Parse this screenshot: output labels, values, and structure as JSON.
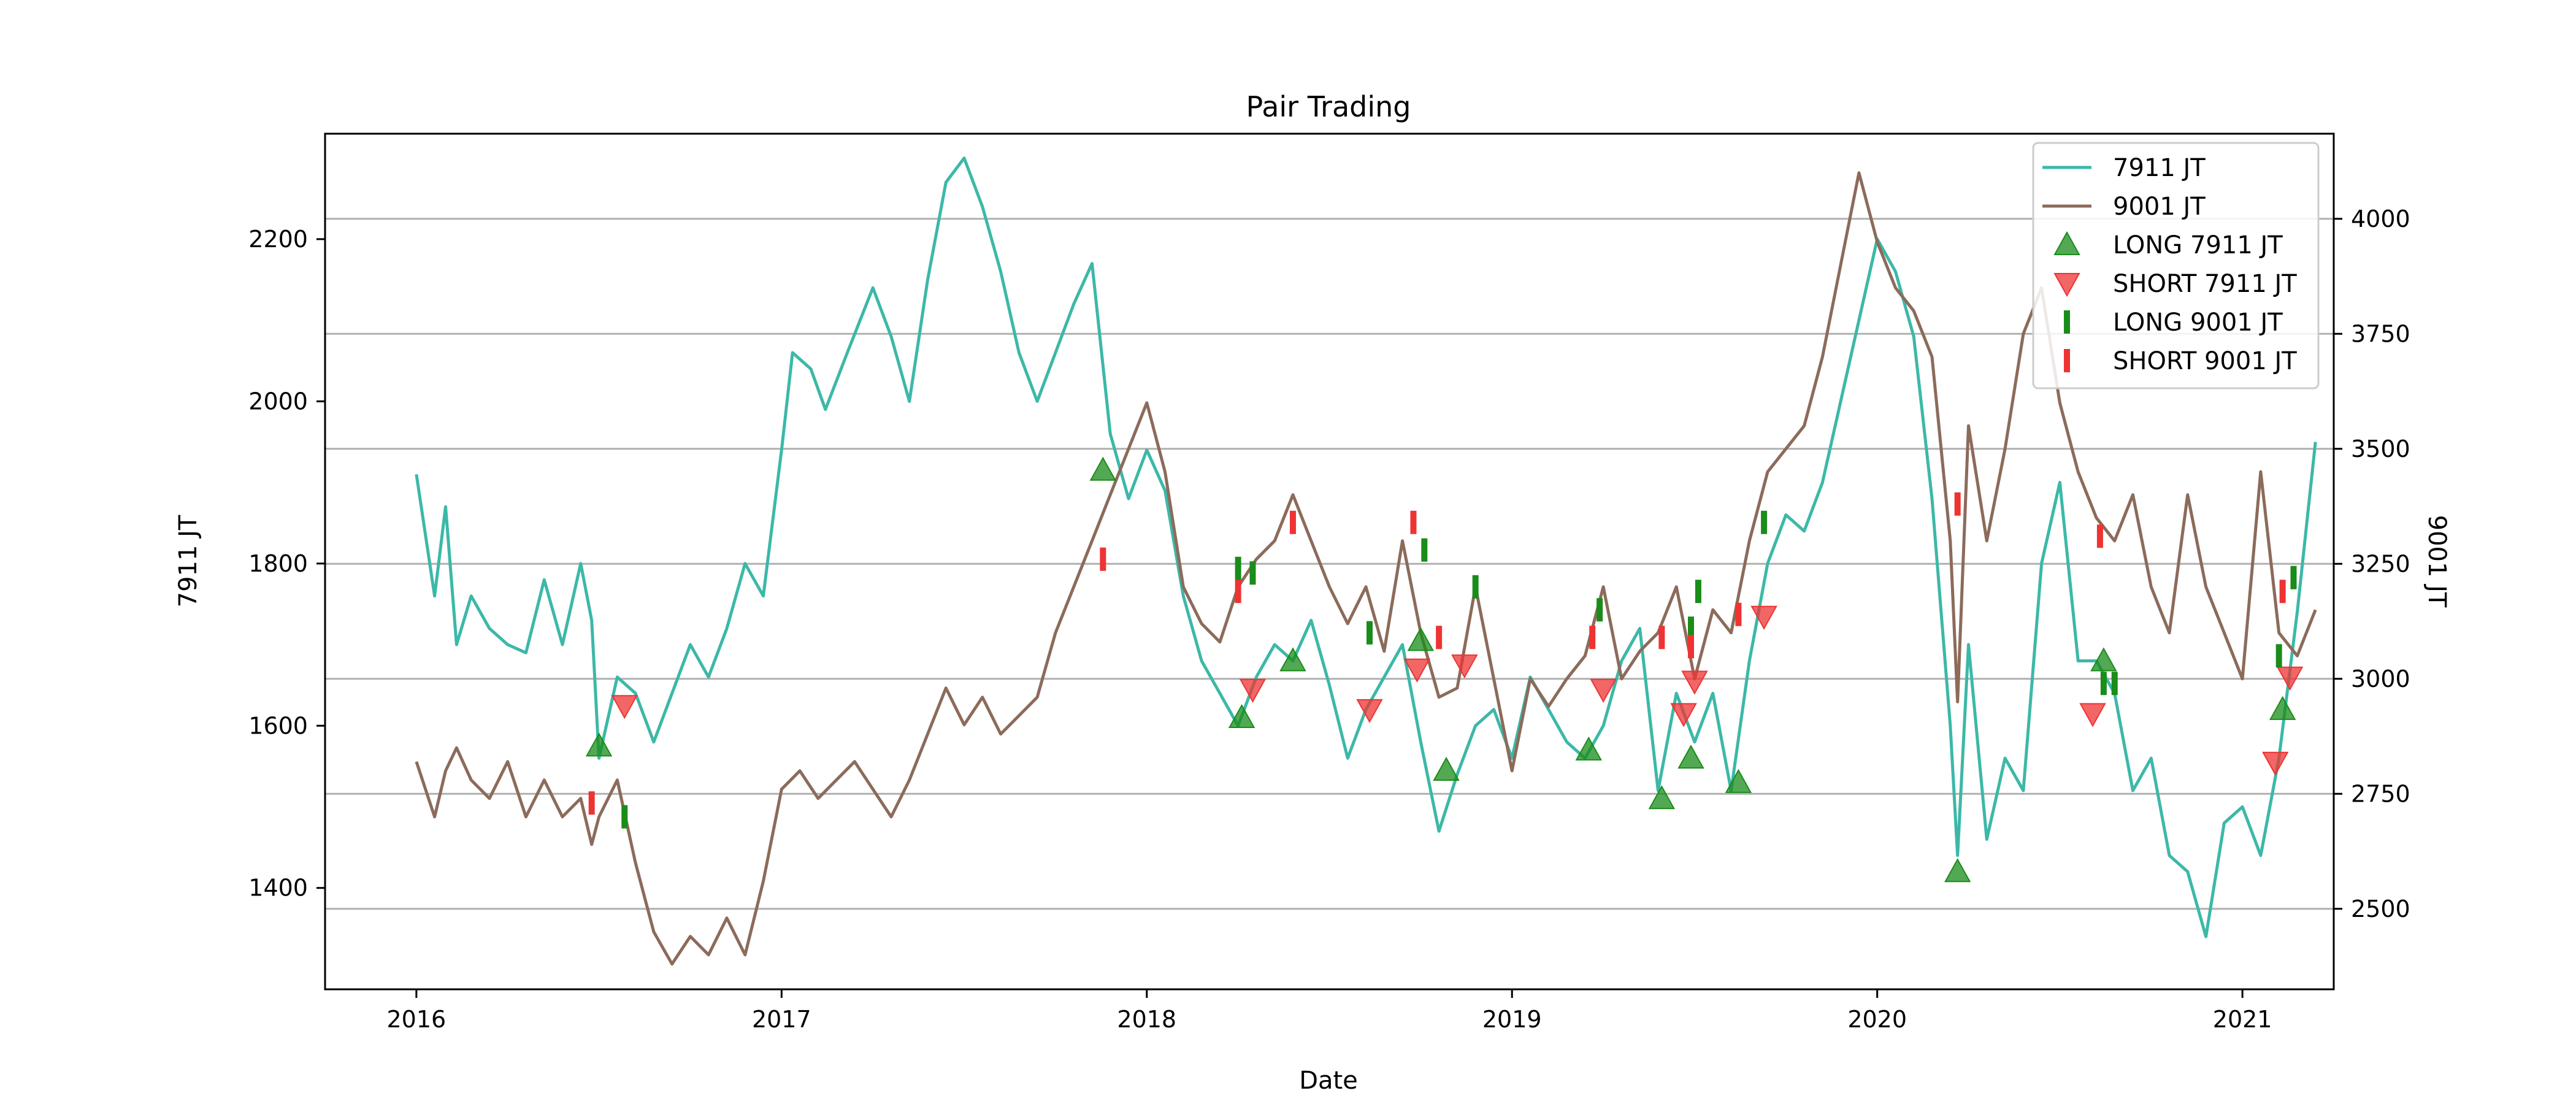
{
  "chart_data": {
    "type": "line",
    "title": "Pair Trading",
    "xlabel": "Date",
    "ylabel_left": "7911 JT",
    "ylabel_right": "9001 JT",
    "x_ticks": [
      "2016",
      "2017",
      "2018",
      "2019",
      "2020",
      "2021"
    ],
    "y_left_ticks": [
      1400,
      1600,
      1800,
      2000,
      2200
    ],
    "y_right_ticks": [
      2500,
      2750,
      3000,
      3250,
      3500,
      3750,
      4000
    ],
    "xlim": [
      2015.75,
      2021.25
    ],
    "ylim_left": [
      1275,
      2330
    ],
    "ylim_right": [
      2325,
      4185
    ],
    "grid": "horizontal lines at right-axis ticks",
    "legend_position": "upper right",
    "colors": {
      "series_7911": "#3cb8a8",
      "series_9001": "#8c6b5b",
      "long": "#1a8c1a",
      "short": "#ee3333"
    },
    "series": [
      {
        "name": "7911 JT",
        "axis": "left",
        "x": [
          2016.0,
          2016.05,
          2016.08,
          2016.11,
          2016.15,
          2016.2,
          2016.25,
          2016.3,
          2016.35,
          2016.4,
          2016.45,
          2016.48,
          2016.5,
          2016.55,
          2016.6,
          2016.65,
          2016.7,
          2016.75,
          2016.8,
          2016.85,
          2016.9,
          2016.95,
          2017.0,
          2017.03,
          2017.08,
          2017.12,
          2017.18,
          2017.25,
          2017.3,
          2017.35,
          2017.4,
          2017.45,
          2017.5,
          2017.55,
          2017.6,
          2017.65,
          2017.7,
          2017.75,
          2017.8,
          2017.85,
          2017.9,
          2017.95,
          2018.0,
          2018.05,
          2018.1,
          2018.15,
          2018.2,
          2018.25,
          2018.3,
          2018.35,
          2018.4,
          2018.45,
          2018.5,
          2018.55,
          2018.6,
          2018.65,
          2018.7,
          2018.75,
          2018.8,
          2018.85,
          2018.9,
          2018.95,
          2019.0,
          2019.05,
          2019.1,
          2019.15,
          2019.2,
          2019.25,
          2019.3,
          2019.35,
          2019.4,
          2019.45,
          2019.5,
          2019.55,
          2019.6,
          2019.65,
          2019.7,
          2019.75,
          2019.8,
          2019.85,
          2019.9,
          2019.95,
          2020.0,
          2020.05,
          2020.1,
          2020.15,
          2020.2,
          2020.22,
          2020.25,
          2020.3,
          2020.35,
          2020.4,
          2020.45,
          2020.5,
          2020.55,
          2020.6,
          2020.65,
          2020.7,
          2020.75,
          2020.8,
          2020.85,
          2020.9,
          2020.95,
          2021.0,
          2021.05,
          2021.1,
          2021.15,
          2021.2
        ],
        "y": [
          1910,
          1760,
          1870,
          1700,
          1760,
          1720,
          1700,
          1690,
          1780,
          1700,
          1800,
          1730,
          1560,
          1660,
          1640,
          1580,
          1640,
          1700,
          1660,
          1720,
          1800,
          1760,
          1940,
          2060,
          2040,
          1990,
          2060,
          2140,
          2080,
          2000,
          2150,
          2270,
          2300,
          2240,
          2160,
          2060,
          2000,
          2060,
          2120,
          2170,
          1960,
          1880,
          1940,
          1890,
          1760,
          1680,
          1640,
          1600,
          1660,
          1700,
          1680,
          1730,
          1650,
          1560,
          1620,
          1660,
          1700,
          1580,
          1470,
          1540,
          1600,
          1620,
          1560,
          1660,
          1620,
          1580,
          1560,
          1600,
          1680,
          1720,
          1520,
          1640,
          1580,
          1640,
          1520,
          1680,
          1800,
          1860,
          1840,
          1900,
          2000,
          2100,
          2200,
          2160,
          2080,
          1880,
          1600,
          1440,
          1700,
          1460,
          1560,
          1520,
          1800,
          1900,
          1680,
          1680,
          1640,
          1520,
          1560,
          1440,
          1420,
          1340,
          1480,
          1500,
          1440,
          1560,
          1740,
          1950
        ]
      },
      {
        "name": "9001 JT",
        "axis": "right",
        "x": [
          2016.0,
          2016.05,
          2016.08,
          2016.11,
          2016.15,
          2016.2,
          2016.25,
          2016.3,
          2016.35,
          2016.4,
          2016.45,
          2016.48,
          2016.5,
          2016.55,
          2016.6,
          2016.65,
          2016.7,
          2016.75,
          2016.8,
          2016.85,
          2016.9,
          2016.95,
          2017.0,
          2017.05,
          2017.1,
          2017.15,
          2017.2,
          2017.25,
          2017.3,
          2017.35,
          2017.4,
          2017.45,
          2017.5,
          2017.55,
          2017.6,
          2017.65,
          2017.7,
          2017.75,
          2017.8,
          2017.85,
          2017.9,
          2017.95,
          2018.0,
          2018.05,
          2018.1,
          2018.15,
          2018.2,
          2018.25,
          2018.3,
          2018.35,
          2018.4,
          2018.45,
          2018.5,
          2018.55,
          2018.6,
          2018.65,
          2018.7,
          2018.75,
          2018.8,
          2018.85,
          2018.9,
          2018.95,
          2019.0,
          2019.05,
          2019.1,
          2019.15,
          2019.2,
          2019.25,
          2019.3,
          2019.35,
          2019.4,
          2019.45,
          2019.5,
          2019.55,
          2019.6,
          2019.65,
          2019.7,
          2019.75,
          2019.8,
          2019.85,
          2019.9,
          2019.95,
          2020.0,
          2020.05,
          2020.1,
          2020.15,
          2020.2,
          2020.22,
          2020.25,
          2020.3,
          2020.35,
          2020.4,
          2020.45,
          2020.5,
          2020.55,
          2020.6,
          2020.65,
          2020.7,
          2020.75,
          2020.8,
          2020.85,
          2020.9,
          2020.95,
          2021.0,
          2021.05,
          2021.1,
          2021.15,
          2021.2
        ],
        "y": [
          2820,
          2700,
          2800,
          2850,
          2780,
          2740,
          2820,
          2700,
          2780,
          2700,
          2740,
          2640,
          2700,
          2780,
          2600,
          2450,
          2380,
          2440,
          2400,
          2480,
          2400,
          2560,
          2760,
          2800,
          2740,
          2780,
          2820,
          2760,
          2700,
          2780,
          2880,
          2980,
          2900,
          2960,
          2880,
          2920,
          2960,
          3100,
          3200,
          3300,
          3400,
          3500,
          3600,
          3450,
          3200,
          3120,
          3080,
          3200,
          3260,
          3300,
          3400,
          3300,
          3200,
          3120,
          3200,
          3060,
          3300,
          3100,
          2960,
          2980,
          3200,
          3000,
          2800,
          3000,
          2940,
          3000,
          3050,
          3200,
          3000,
          3060,
          3100,
          3200,
          3000,
          3150,
          3100,
          3300,
          3450,
          3500,
          3550,
          3700,
          3900,
          4100,
          3950,
          3850,
          3800,
          3700,
          3300,
          2950,
          3550,
          3300,
          3500,
          3750,
          3850,
          3600,
          3450,
          3350,
          3300,
          3400,
          3200,
          3100,
          3400,
          3200,
          3100,
          3000,
          3450,
          3100,
          3050,
          3150
        ]
      }
    ],
    "markers": {
      "long_7911": [
        [
          2016.5,
          1575
        ],
        [
          2017.88,
          1915
        ],
        [
          2018.26,
          1610
        ],
        [
          2018.4,
          1680
        ],
        [
          2018.75,
          1705
        ],
        [
          2018.82,
          1545
        ],
        [
          2019.21,
          1570
        ],
        [
          2019.41,
          1510
        ],
        [
          2019.49,
          1560
        ],
        [
          2019.62,
          1530
        ],
        [
          2020.22,
          1420
        ],
        [
          2020.62,
          1680
        ],
        [
          2021.11,
          1620
        ]
      ],
      "short_7911": [
        [
          2016.57,
          1625
        ],
        [
          2018.29,
          1645
        ],
        [
          2018.61,
          1620
        ],
        [
          2018.74,
          1670
        ],
        [
          2018.87,
          1675
        ],
        [
          2019.25,
          1645
        ],
        [
          2019.47,
          1615
        ],
        [
          2019.5,
          1655
        ],
        [
          2019.69,
          1735
        ],
        [
          2020.59,
          1615
        ],
        [
          2021.09,
          1555
        ],
        [
          2021.13,
          1660
        ]
      ],
      "long_9001": [
        [
          2016.57,
          2700
        ],
        [
          2018.25,
          3240
        ],
        [
          2018.29,
          3230
        ],
        [
          2018.61,
          3100
        ],
        [
          2018.76,
          3280
        ],
        [
          2018.9,
          3200
        ],
        [
          2019.24,
          3150
        ],
        [
          2019.49,
          3110
        ],
        [
          2019.51,
          3190
        ],
        [
          2019.69,
          3340
        ],
        [
          2020.62,
          2990
        ],
        [
          2020.65,
          2990
        ],
        [
          2021.1,
          3050
        ],
        [
          2021.14,
          3220
        ]
      ],
      "short_9001": [
        [
          2016.48,
          2730
        ],
        [
          2017.88,
          3260
        ],
        [
          2018.25,
          3190
        ],
        [
          2018.4,
          3340
        ],
        [
          2018.73,
          3340
        ],
        [
          2018.8,
          3090
        ],
        [
          2019.22,
          3090
        ],
        [
          2019.41,
          3090
        ],
        [
          2019.49,
          3070
        ],
        [
          2019.62,
          3140
        ],
        [
          2020.22,
          3380
        ],
        [
          2020.61,
          3310
        ],
        [
          2021.11,
          3190
        ]
      ]
    },
    "legend": [
      "7911 JT",
      "9001 JT",
      "LONG 7911 JT",
      "SHORT 7911 JT",
      "LONG 9001 JT",
      "SHORT 9001 JT"
    ]
  }
}
